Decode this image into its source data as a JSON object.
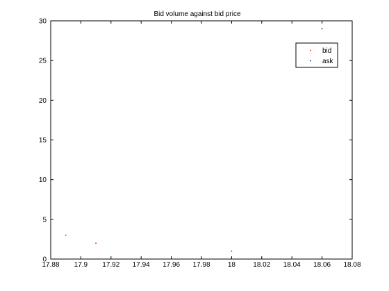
{
  "chart_data": {
    "type": "scatter",
    "title": "Bid volume against bid price",
    "xlabel": "",
    "ylabel": "",
    "xlim": [
      17.88,
      18.08
    ],
    "ylim": [
      0,
      30
    ],
    "xticks": [
      17.88,
      17.9,
      17.92,
      17.94,
      17.96,
      17.98,
      18,
      18.02,
      18.04,
      18.06,
      18.08
    ],
    "xtick_labels": [
      "17.88",
      "17.9",
      "17.92",
      "17.94",
      "17.96",
      "17.98",
      "18",
      "18.02",
      "18.04",
      "18.06",
      "18.08"
    ],
    "yticks": [
      0,
      5,
      10,
      15,
      20,
      25,
      30
    ],
    "ytick_labels": [
      "0",
      "5",
      "10",
      "15",
      "20",
      "25",
      "30"
    ],
    "grid": false,
    "legend": "top-right",
    "series": [
      {
        "name": "bid",
        "color": "#ff0000",
        "points": [
          {
            "x": 17.89,
            "y": 3
          },
          {
            "x": 17.91,
            "y": 2
          },
          {
            "x": 18.0,
            "y": 1
          }
        ]
      },
      {
        "name": "ask",
        "color": "#000080",
        "points": [
          {
            "x": 18.06,
            "y": 29
          }
        ]
      }
    ]
  }
}
